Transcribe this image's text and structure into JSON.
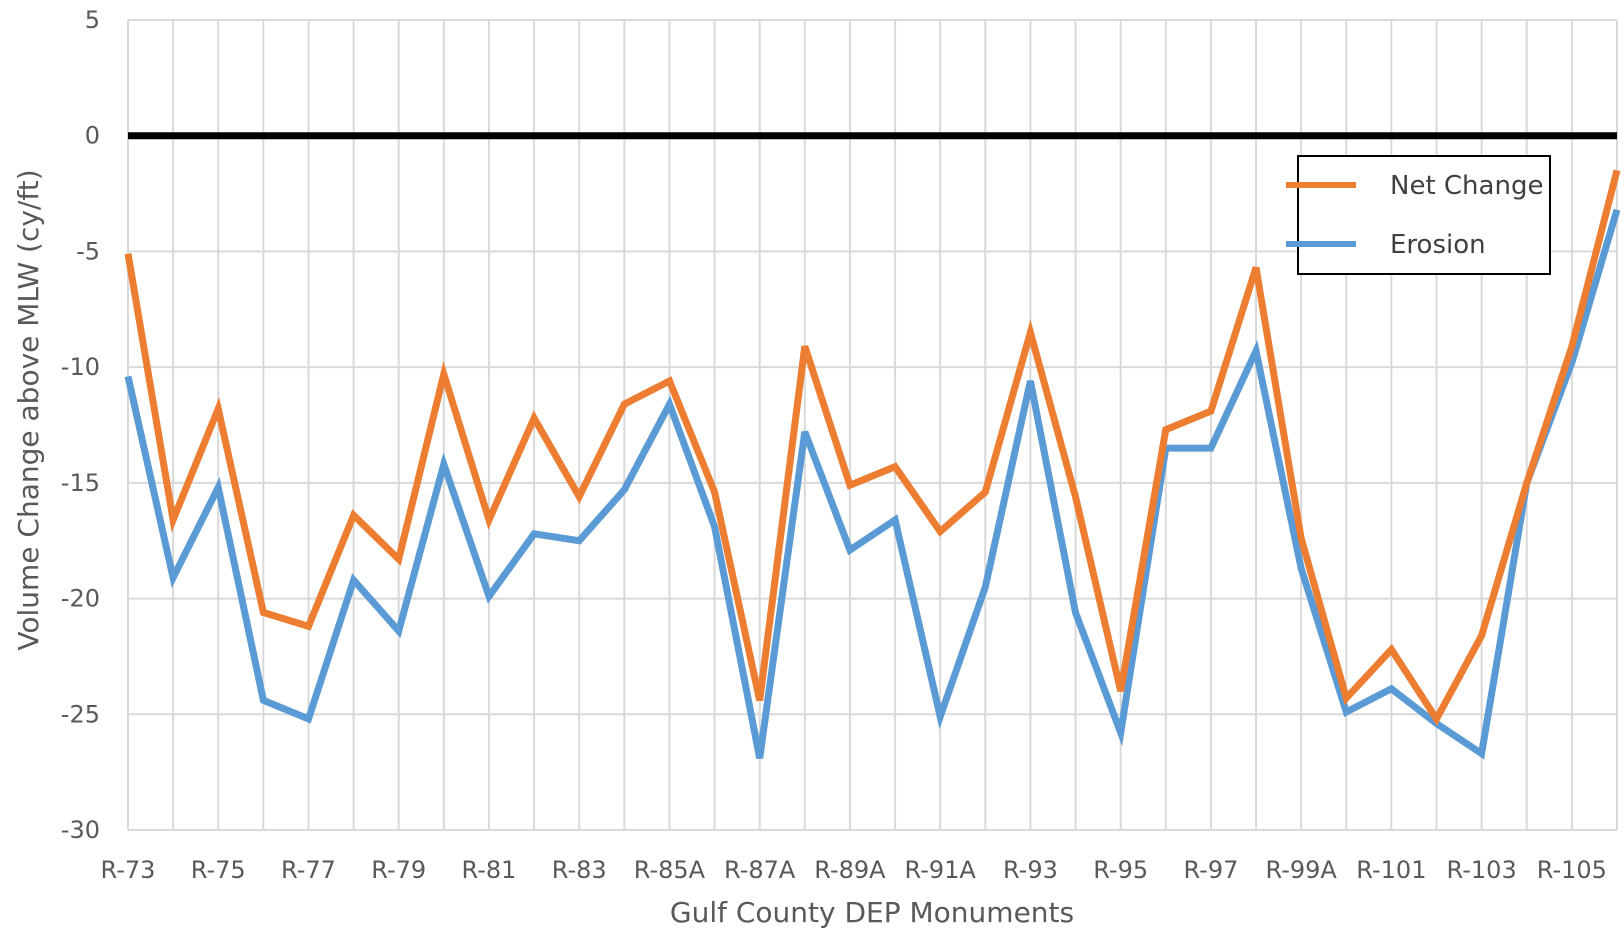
{
  "chart_data": {
    "type": "line",
    "xlabel": "Gulf County DEP Monuments",
    "ylabel": "Volume Change above MLW (cy/ft)",
    "ylim": [
      -30,
      5
    ],
    "y_ticks": [
      5,
      0,
      -5,
      -10,
      -15,
      -20,
      -25,
      -30
    ],
    "grid": true,
    "legend_position": "top-right",
    "categories": [
      "R-73",
      "",
      "R-75",
      "",
      "R-77",
      "",
      "R-79",
      "",
      "R-81",
      "",
      "R-83",
      "",
      "R-85A",
      "",
      "R-87A",
      "",
      "R-89A",
      "",
      "R-91A",
      "",
      "R-93",
      "",
      "R-95",
      "",
      "R-97",
      "",
      "R-99A",
      "",
      "R-101",
      "",
      "R-103",
      "",
      "R-105",
      ""
    ],
    "series": [
      {
        "name": "Net Change",
        "color": "#ED7D31",
        "values": [
          -5.1,
          -16.6,
          -11.8,
          -20.6,
          -21.2,
          -16.4,
          -18.3,
          -10.3,
          -16.6,
          -12.2,
          -15.6,
          -11.6,
          -10.6,
          -15.4,
          -24.4,
          -9.1,
          -15.1,
          -14.3,
          -17.1,
          -15.4,
          -8.5,
          -15.6,
          -24.0,
          -12.7,
          -11.9,
          -5.7,
          -17.4,
          -24.3,
          -22.2,
          -25.2,
          -21.6,
          -15.0,
          -9.1,
          -1.5
        ]
      },
      {
        "name": "Erosion",
        "color": "#5B9BD5",
        "values": [
          -10.4,
          -19.1,
          -15.2,
          -24.4,
          -25.2,
          -19.2,
          -21.4,
          -14.2,
          -19.9,
          -17.2,
          -17.5,
          -15.3,
          -11.6,
          -16.9,
          -26.9,
          -12.8,
          -17.9,
          -16.6,
          -25.1,
          -19.5,
          -10.6,
          -20.6,
          -25.8,
          -13.5,
          -13.5,
          -9.3,
          -18.7,
          -24.9,
          -23.9,
          -25.4,
          -26.7,
          -15.0,
          -9.8,
          -3.2
        ]
      }
    ]
  }
}
